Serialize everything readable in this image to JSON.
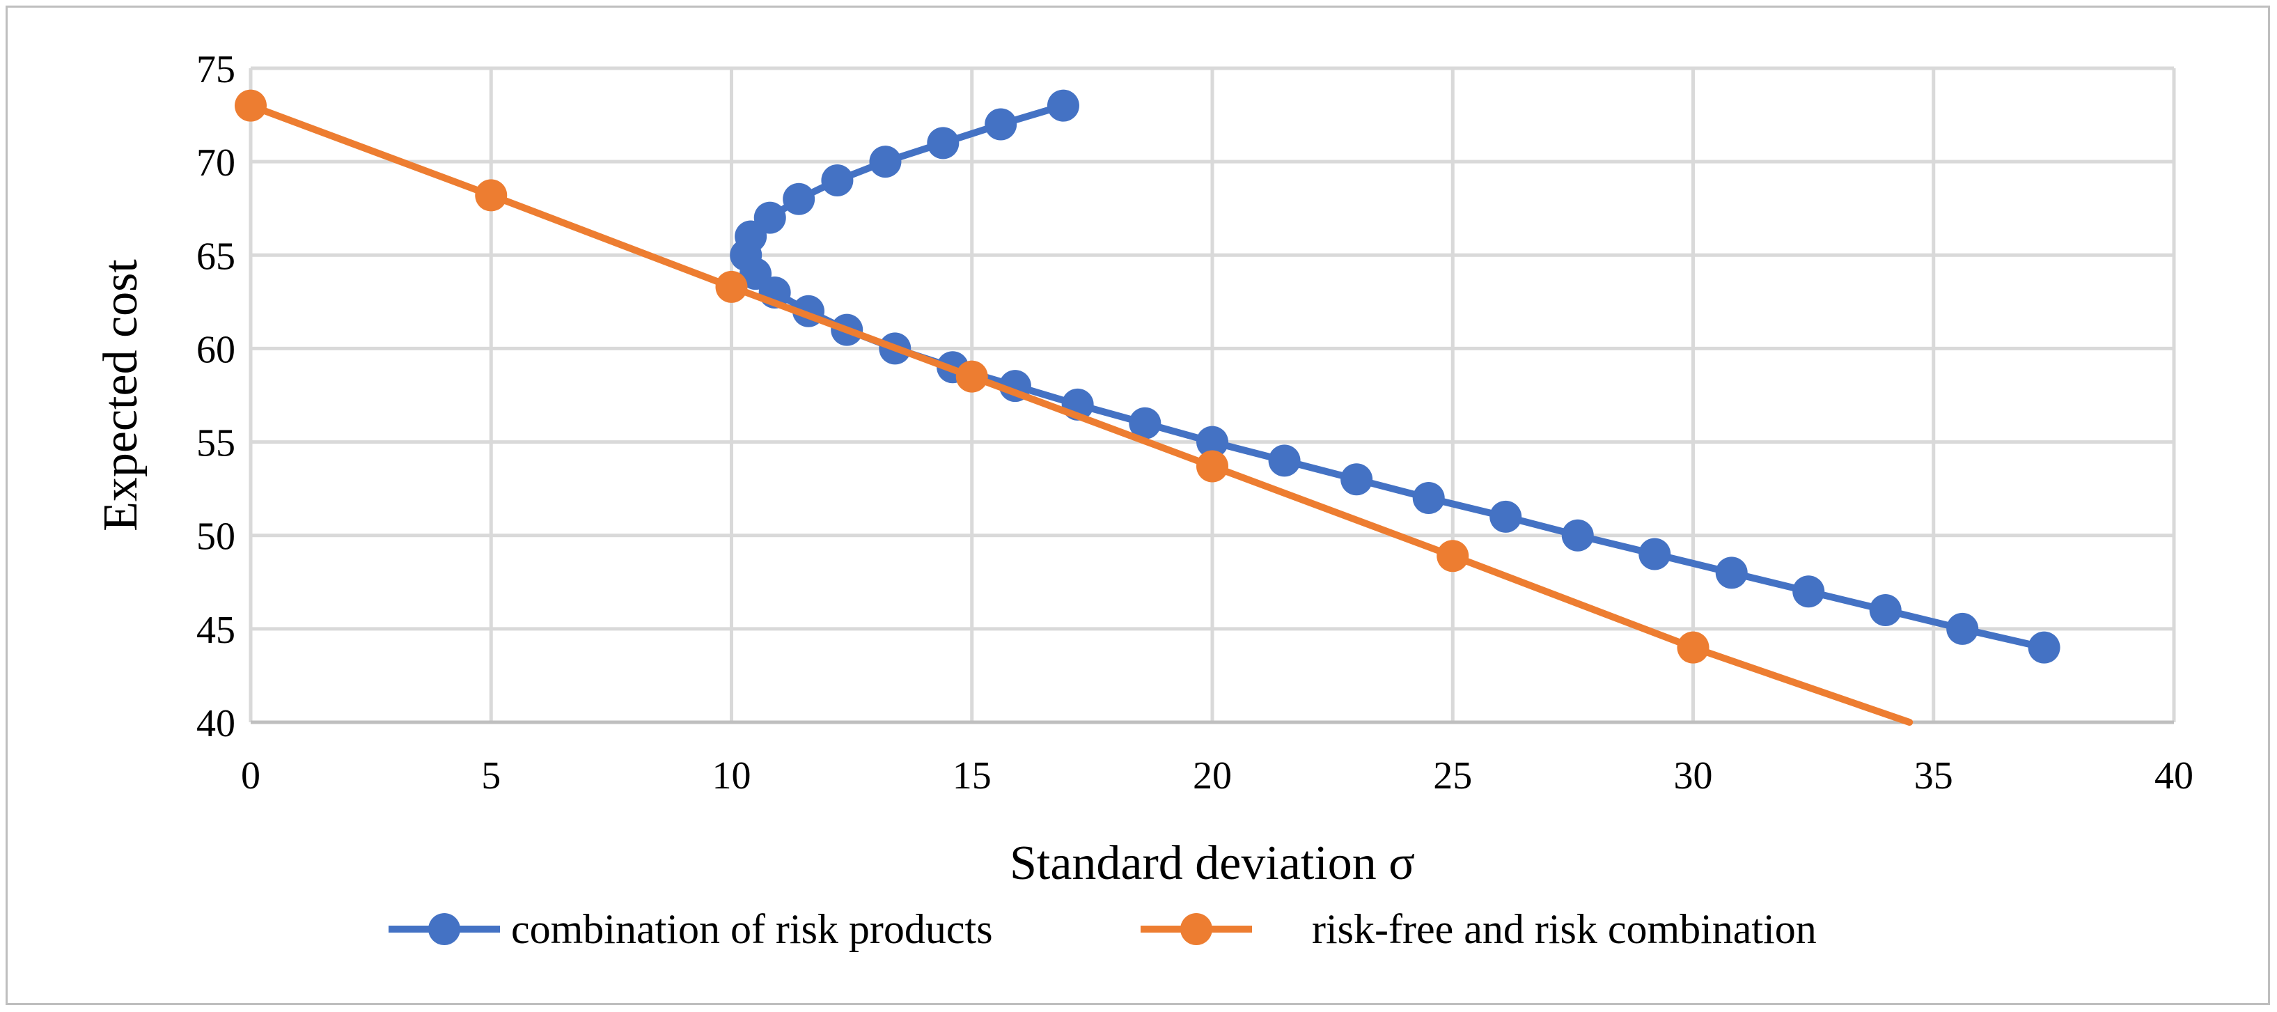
{
  "chart_data": {
    "type": "line",
    "title": "",
    "xlabel": "Standard deviation σ",
    "ylabel": "Expected cost",
    "xlim": [
      0,
      40
    ],
    "ylim": [
      40,
      75
    ],
    "x_ticks": [
      "0",
      "5",
      "10",
      "15",
      "20",
      "25",
      "30",
      "35",
      "40"
    ],
    "y_ticks": [
      "40",
      "45",
      "50",
      "55",
      "60",
      "65",
      "70",
      "75"
    ],
    "grid": true,
    "legend_position": "bottom",
    "series": [
      {
        "name": "combination of risk products",
        "color": "#4472C4",
        "marker": "circle",
        "points": [
          [
            16.9,
            73
          ],
          [
            15.6,
            72
          ],
          [
            14.4,
            71
          ],
          [
            13.2,
            70
          ],
          [
            12.2,
            69
          ],
          [
            11.4,
            68
          ],
          [
            10.8,
            67
          ],
          [
            10.4,
            66
          ],
          [
            10.3,
            65
          ],
          [
            10.5,
            64
          ],
          [
            10.9,
            63
          ],
          [
            11.6,
            62
          ],
          [
            12.4,
            61
          ],
          [
            13.4,
            60
          ],
          [
            14.6,
            59
          ],
          [
            15.9,
            58
          ],
          [
            17.2,
            57
          ],
          [
            18.6,
            56
          ],
          [
            20.0,
            55
          ],
          [
            21.5,
            54
          ],
          [
            23.0,
            53
          ],
          [
            24.5,
            52
          ],
          [
            26.1,
            51
          ],
          [
            27.6,
            50
          ],
          [
            29.2,
            49
          ],
          [
            30.8,
            48
          ],
          [
            32.4,
            47
          ],
          [
            34.0,
            46
          ],
          [
            35.6,
            45
          ],
          [
            37.3,
            44
          ]
        ]
      },
      {
        "name": "risk-free and risk combination",
        "color": "#ED7D31",
        "marker": "circle",
        "points": [
          [
            0,
            73
          ],
          [
            5,
            68.2
          ],
          [
            10,
            63.3
          ],
          [
            15,
            58.5
          ],
          [
            20,
            53.7
          ],
          [
            25,
            48.9
          ],
          [
            30,
            44.0
          ]
        ],
        "line_extends_to": [
          34.5,
          39.7
        ]
      }
    ]
  }
}
